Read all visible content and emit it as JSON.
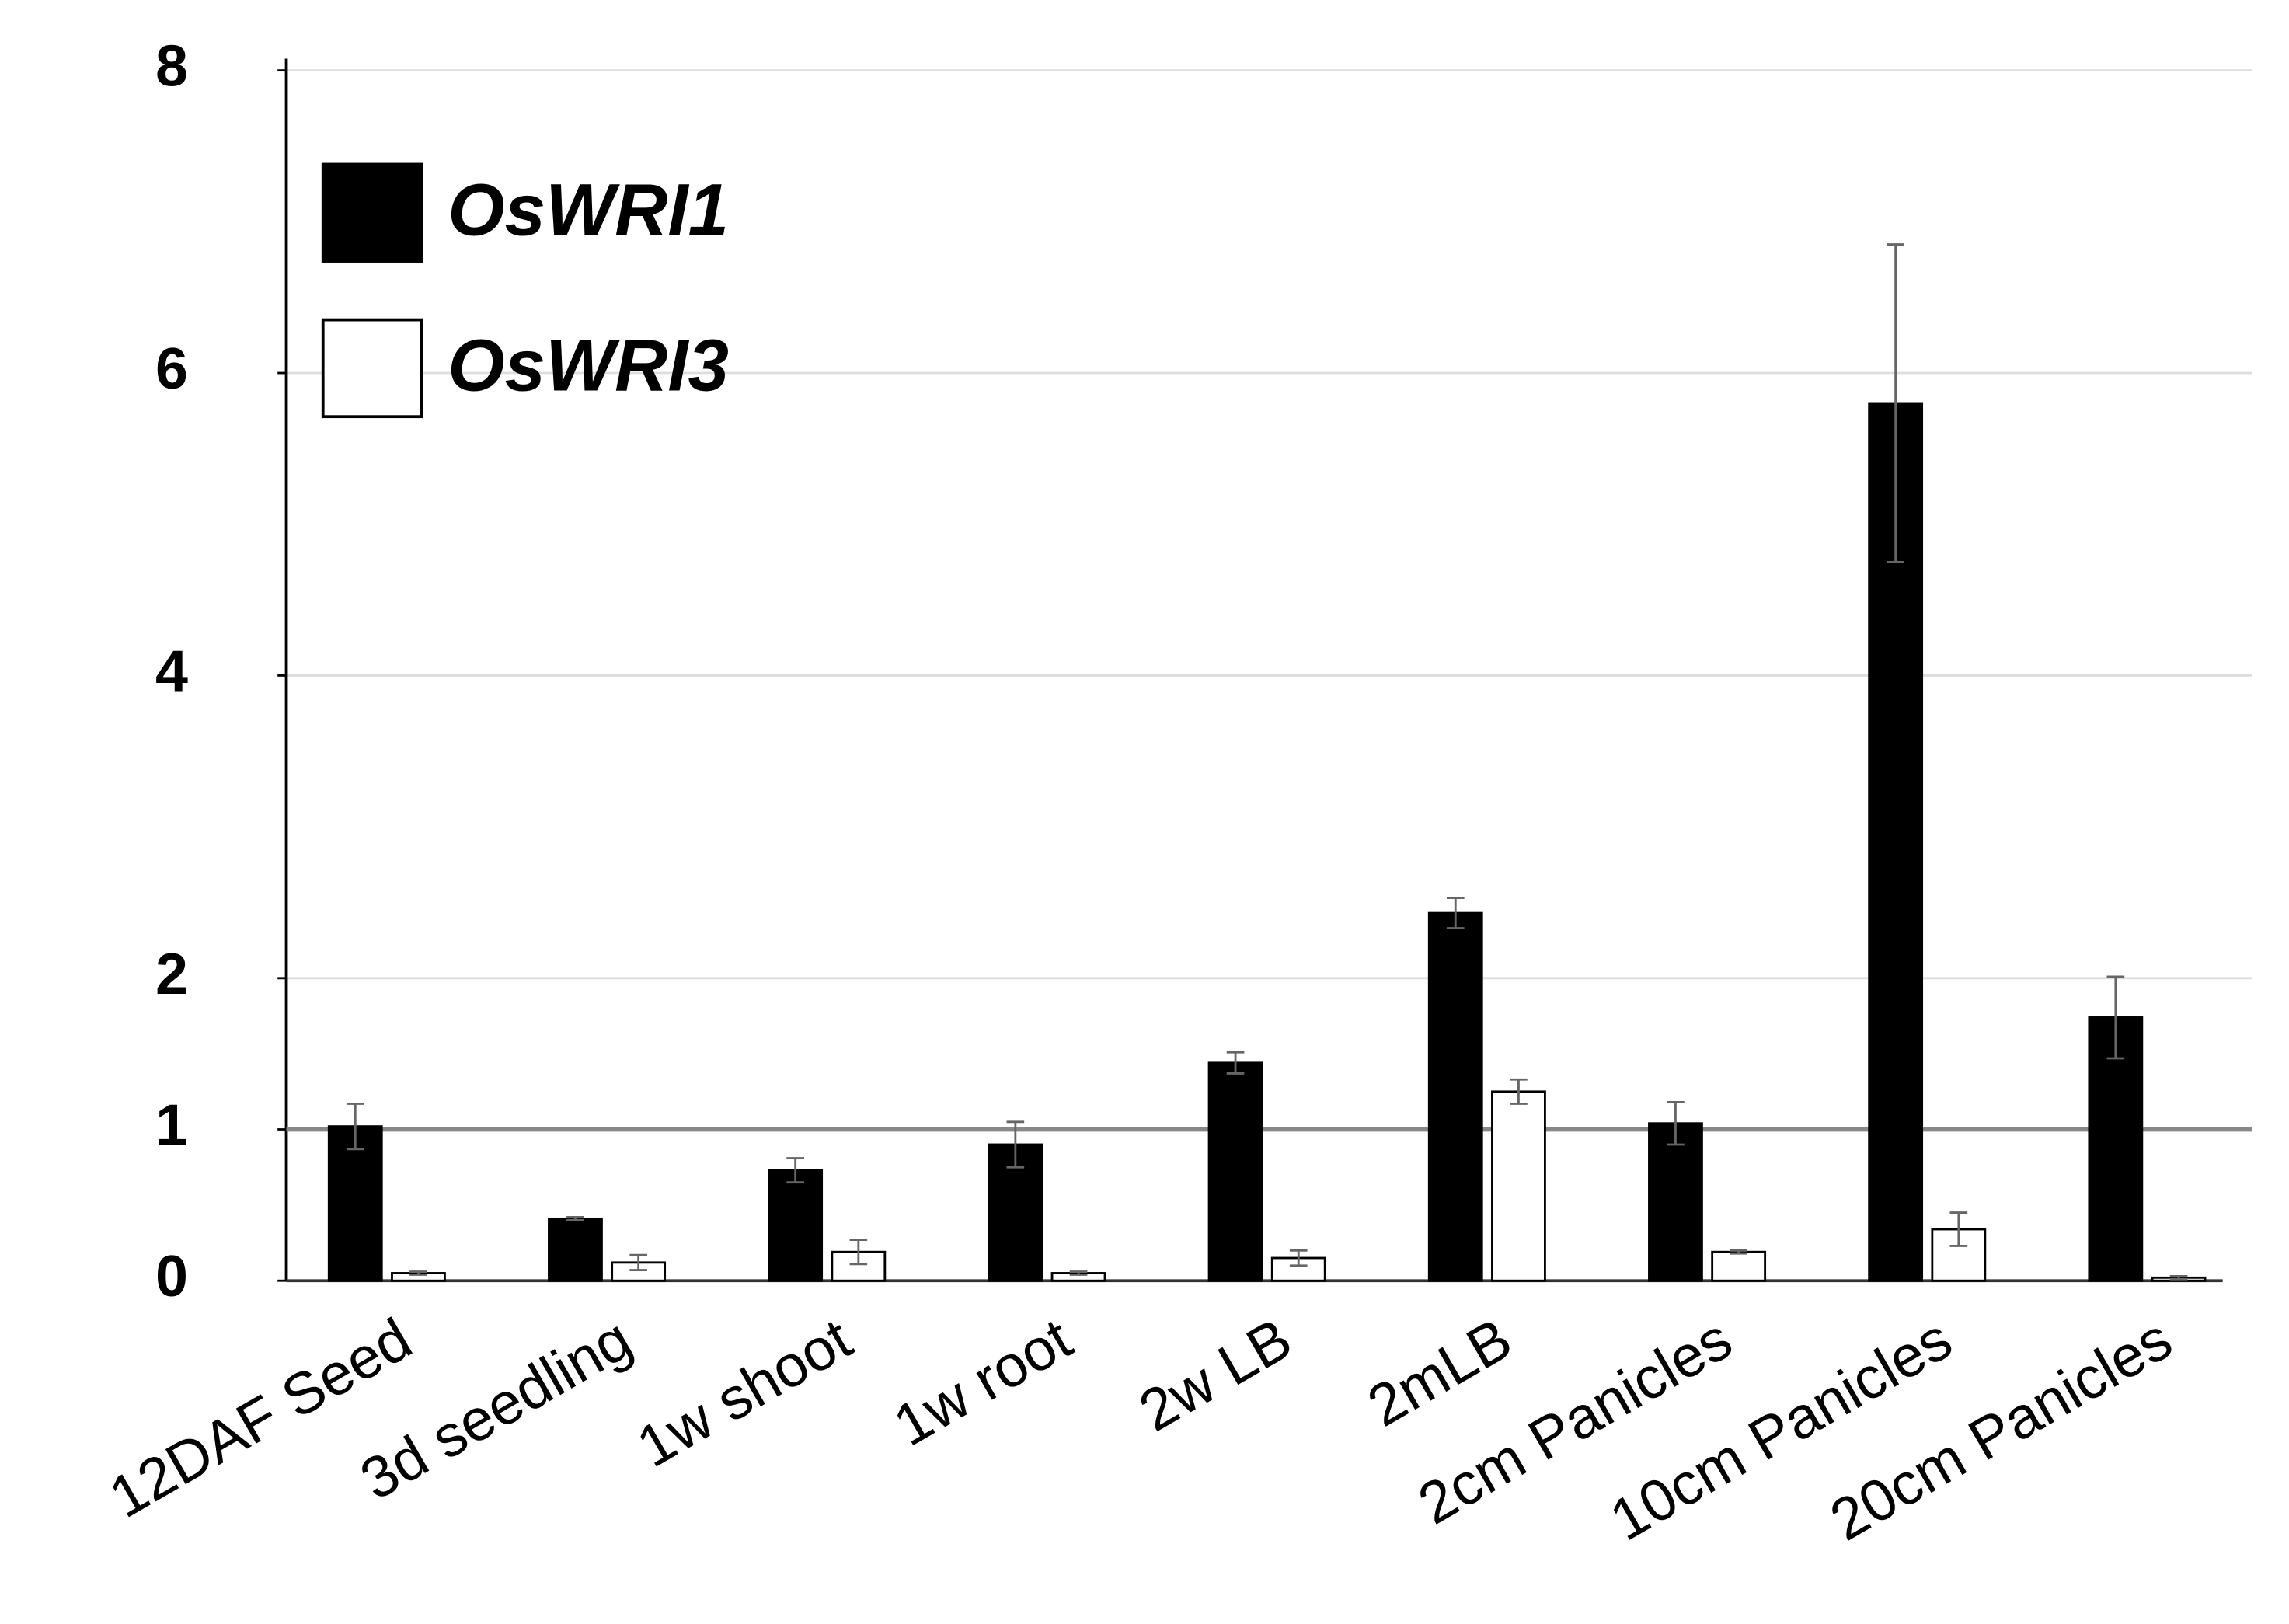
{
  "chart_data": {
    "type": "bar",
    "categories": [
      "12DAF Seed",
      "3d seedling",
      "1w shoot",
      "1w root",
      "2w LB",
      "2mLB",
      "2cm Panicles",
      "10cm Panicles",
      "20cm Panicles"
    ],
    "series": [
      {
        "name": "OsWRI1",
        "color": "#000000",
        "values": [
          1.02,
          0.41,
          0.73,
          0.9,
          1.44,
          2.43,
          1.04,
          5.8,
          1.74
        ],
        "errors": [
          0.15,
          0.01,
          0.08,
          0.15,
          0.07,
          0.1,
          0.14,
          1.05,
          0.27
        ]
      },
      {
        "name": "OsWRI3",
        "color": "#ffffff",
        "values": [
          0.05,
          0.12,
          0.19,
          0.05,
          0.15,
          1.25,
          0.19,
          0.34,
          0.02
        ],
        "errors": [
          0.01,
          0.05,
          0.08,
          0.01,
          0.05,
          0.08,
          0.01,
          0.11,
          0.01
        ]
      }
    ],
    "ylim": [
      0,
      8
    ],
    "yticks": [
      0,
      1,
      2,
      4,
      6,
      8
    ],
    "grid": true,
    "reference_line": 1,
    "legend": "upper left"
  }
}
